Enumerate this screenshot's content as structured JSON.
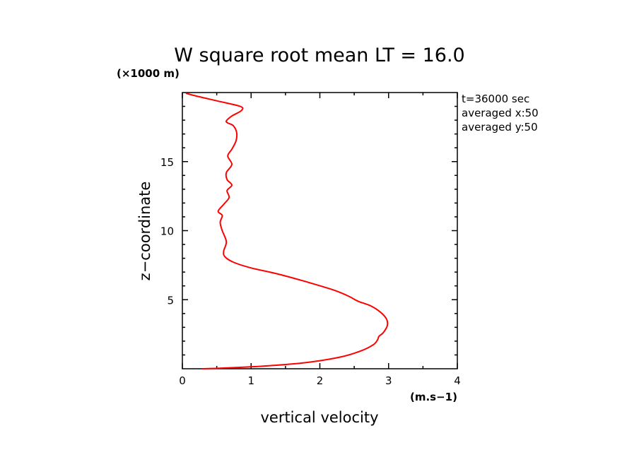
{
  "chart_data": {
    "type": "line",
    "title": "W square root mean LT = 16.0",
    "xlabel": "vertical velocity",
    "ylabel": "z−coordinate",
    "x_unit": "(m.s−1)",
    "y_unit": "(×1000 m)",
    "xlim": [
      0,
      4
    ],
    "ylim": [
      0,
      20
    ],
    "x_ticks": [
      "0",
      "1",
      "2",
      "3",
      "4"
    ],
    "y_ticks": [
      "5",
      "10",
      "15"
    ],
    "annotations": [
      "t=36000 sec",
      "averaged  x:50",
      "averaged  y:50"
    ],
    "grid": false,
    "series": [
      {
        "color": "#ff0000",
        "x": [
          0.28,
          0.6,
          1.2,
          1.8,
          2.3,
          2.6,
          2.78,
          2.84,
          2.86,
          2.92,
          2.98,
          2.97,
          2.88,
          2.74,
          2.55,
          2.42,
          2.2,
          1.8,
          1.4,
          1.0,
          0.75,
          0.62,
          0.6,
          0.64,
          0.58,
          0.55,
          0.58,
          0.52,
          0.6,
          0.68,
          0.65,
          0.72,
          0.65,
          0.64,
          0.72,
          0.66,
          0.72,
          0.78,
          0.79,
          0.74,
          0.66,
          0.64,
          0.72,
          0.86,
          0.84,
          0.5,
          0.2,
          0.05
        ],
        "y": [
          0.0,
          0.05,
          0.2,
          0.45,
          0.85,
          1.3,
          1.75,
          2.1,
          2.35,
          2.6,
          3.1,
          3.6,
          4.1,
          4.55,
          4.9,
          5.25,
          5.7,
          6.3,
          6.85,
          7.3,
          7.7,
          8.1,
          8.5,
          9.2,
          10.0,
          10.6,
          11.1,
          11.4,
          11.9,
          12.4,
          12.9,
          13.3,
          13.7,
          14.2,
          14.8,
          15.4,
          15.9,
          16.5,
          17.1,
          17.6,
          17.8,
          17.95,
          18.3,
          18.7,
          19.0,
          19.4,
          19.75,
          19.95
        ]
      }
    ]
  }
}
